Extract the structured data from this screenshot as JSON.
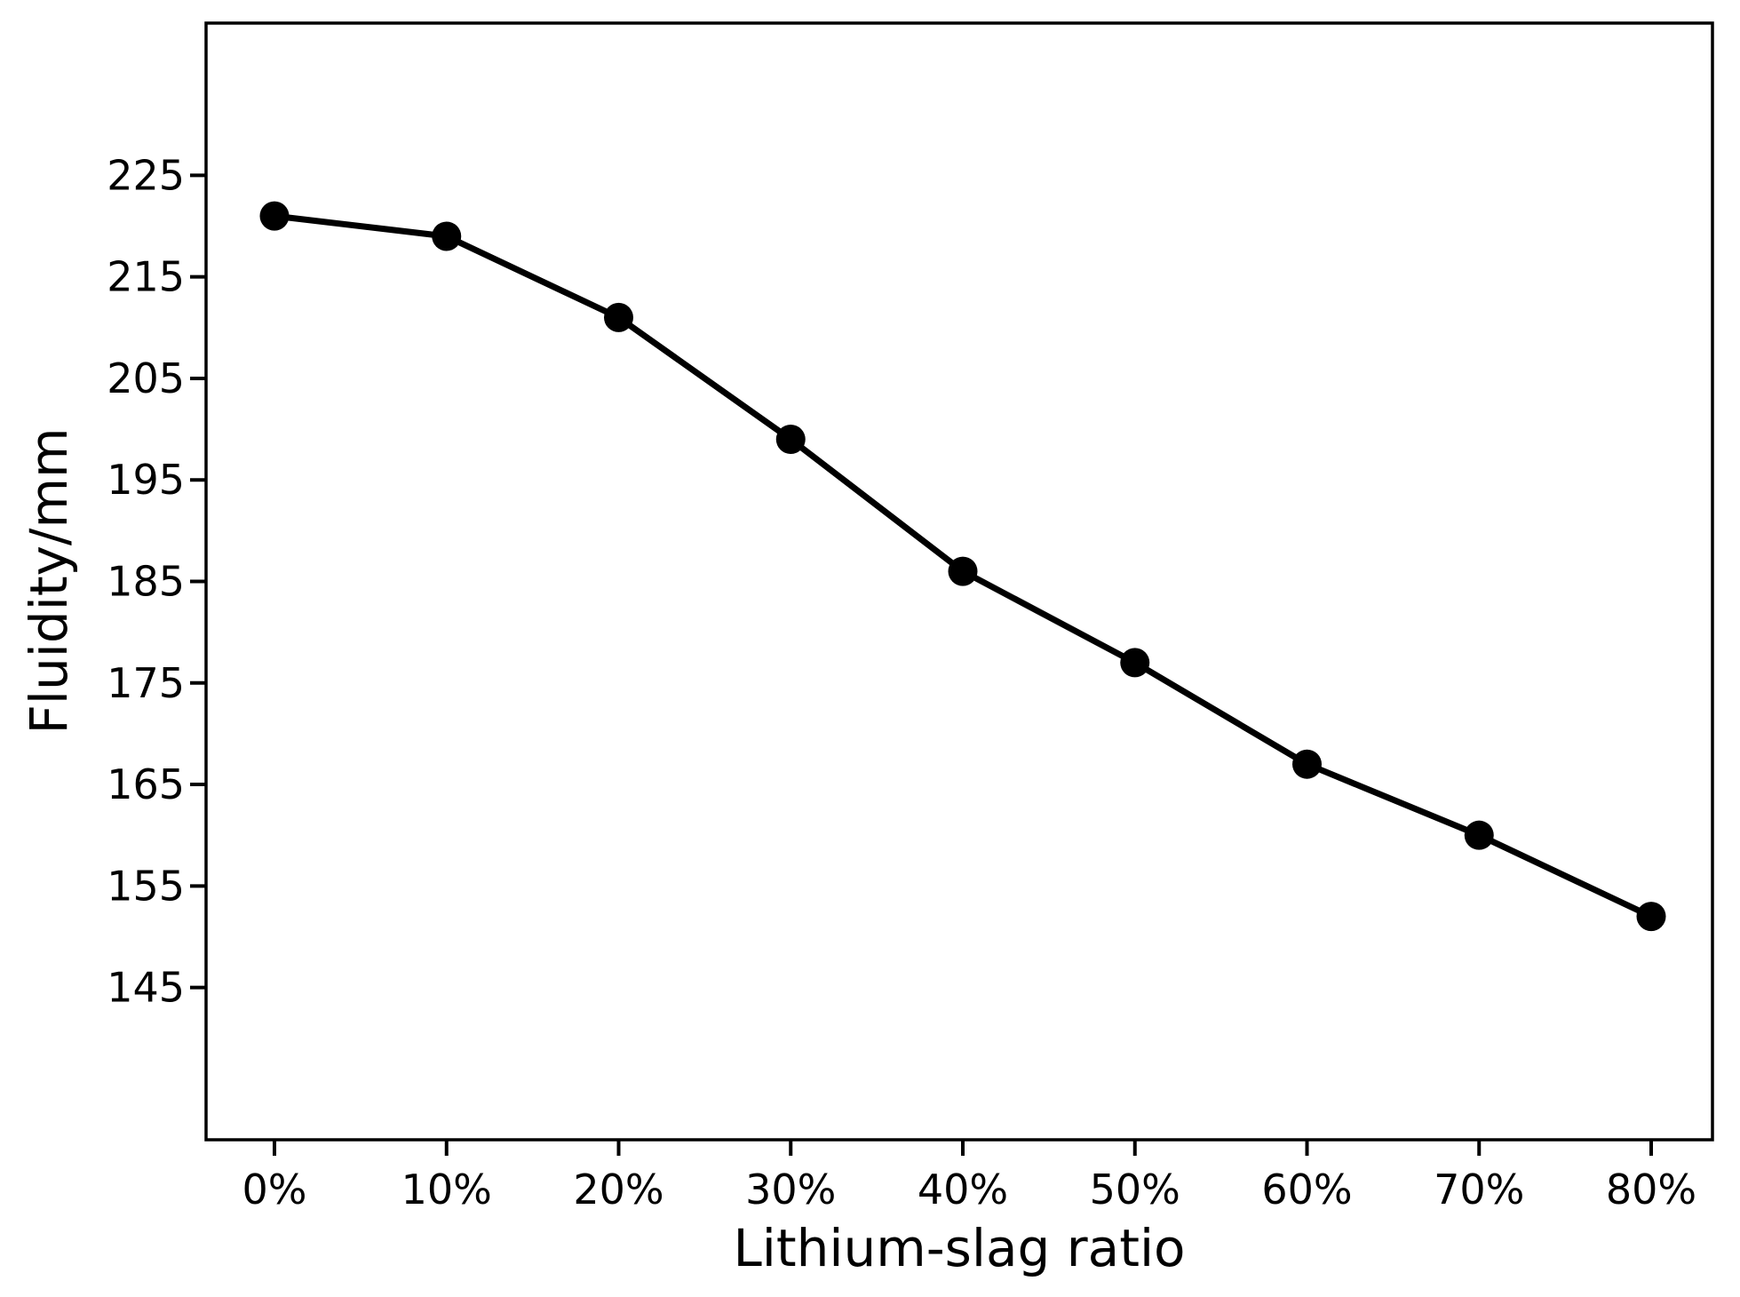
{
  "chart_data": {
    "type": "line",
    "title": "",
    "xlabel": "Lithium-slag ratio",
    "ylabel": "Fluidity/mm",
    "categories": [
      "0%",
      "10%",
      "20%",
      "30%",
      "40%",
      "50%",
      "60%",
      "70%",
      "80%"
    ],
    "series": [
      {
        "name": "Fluidity",
        "values": [
          221,
          219,
          211,
          199,
          186,
          177,
          167,
          160,
          152
        ]
      }
    ],
    "yticks": [
      145,
      155,
      165,
      175,
      185,
      195,
      205,
      215,
      225
    ],
    "ylim": [
      130,
      240
    ],
    "grid": false,
    "legend": false,
    "line_color": "#000000",
    "marker": "circle",
    "marker_color": "#000000",
    "background_color": "#ffffff",
    "axis_color": "#000000"
  }
}
